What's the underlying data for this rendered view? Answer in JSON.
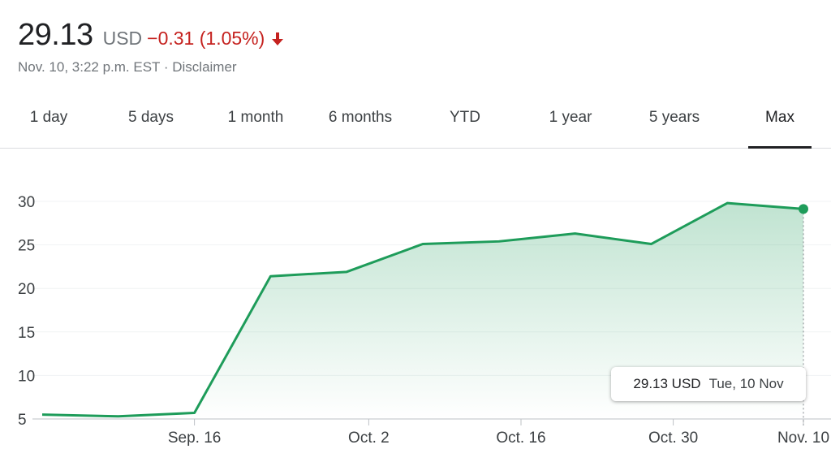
{
  "quote": {
    "price": "29.13",
    "currency": "USD",
    "change": "−0.31 (1.05%)",
    "direction": "down",
    "timestamp": "Nov. 10, 3:22 p.m. EST · ",
    "disclaimer": "Disclaimer"
  },
  "tabs": [
    {
      "label": "1 day"
    },
    {
      "label": "5 days"
    },
    {
      "label": "1 month"
    },
    {
      "label": "6 months"
    },
    {
      "label": "YTD"
    },
    {
      "label": "1 year"
    },
    {
      "label": "5 years"
    },
    {
      "label": "Max",
      "active": true
    }
  ],
  "tooltip": {
    "price": "29.13 USD",
    "date": "Tue, 10 Nov"
  },
  "colors": {
    "line": "#1e9c5a",
    "negative": "#c5221f"
  },
  "chart_data": {
    "type": "area",
    "x": [
      "Sep. 2",
      "Sep. 9",
      "Sep. 16",
      "Sep. 23",
      "Sep. 30",
      "Oct. 7",
      "Oct. 14",
      "Oct. 21",
      "Oct. 28",
      "Nov. 4",
      "Nov. 10"
    ],
    "values": [
      5.5,
      5.3,
      5.7,
      21.4,
      21.9,
      25.1,
      25.4,
      26.3,
      25.1,
      29.8,
      29.13
    ],
    "ylim": [
      5,
      30
    ],
    "yticks": [
      "5",
      "10",
      "15",
      "20",
      "25",
      "30"
    ],
    "xticks": [
      "Sep. 16",
      "Oct. 2",
      "Oct. 16",
      "Oct. 30",
      "Nov. 10"
    ],
    "grid": true
  }
}
